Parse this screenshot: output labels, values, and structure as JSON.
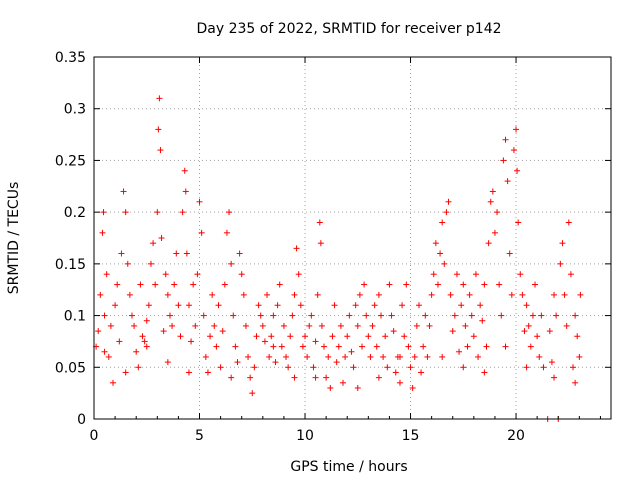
{
  "chart_data": {
    "type": "scatter",
    "title": "Day 235 of 2022, SRMTID for receiver p142",
    "xlabel": "GPS time / hours",
    "ylabel": "SRMTID / TECUs",
    "xlim": [
      0,
      24.5
    ],
    "ylim": [
      0,
      0.35
    ],
    "x_ticks": [
      0,
      5,
      10,
      15,
      20
    ],
    "x_tick_labels": [
      "0",
      "5",
      "10",
      "15",
      "20"
    ],
    "y_ticks": [
      0,
      0.05,
      0.1,
      0.15,
      0.2,
      0.25,
      0.3,
      0.35
    ],
    "y_tick_labels": [
      "0",
      "0.05",
      "0.1",
      "0.15",
      "0.2",
      "0.25",
      "0.3",
      "0.35"
    ],
    "grid": true,
    "marker": "+",
    "series": [
      {
        "name": "p142",
        "color": "#ff0000",
        "points": [
          [
            0.1,
            0.07
          ],
          [
            0.2,
            0.085
          ],
          [
            0.3,
            0.12
          ],
          [
            0.4,
            0.18
          ],
          [
            0.45,
            0.2
          ],
          [
            0.5,
            0.1
          ],
          [
            0.6,
            0.14
          ],
          [
            0.7,
            0.06
          ],
          [
            0.8,
            0.09
          ],
          [
            0.9,
            0.035
          ],
          [
            1.0,
            0.11
          ],
          [
            1.1,
            0.13
          ],
          [
            1.2,
            0.075
          ],
          [
            1.3,
            0.16
          ],
          [
            1.4,
            0.22
          ],
          [
            1.5,
            0.2
          ],
          [
            1.6,
            0.15
          ],
          [
            1.7,
            0.12
          ],
          [
            1.8,
            0.1
          ],
          [
            1.9,
            0.09
          ],
          [
            2.0,
            0.065
          ],
          [
            2.1,
            0.05
          ],
          [
            2.2,
            0.13
          ],
          [
            2.3,
            0.08
          ],
          [
            2.4,
            0.075
          ],
          [
            2.5,
            0.07
          ],
          [
            2.6,
            0.11
          ],
          [
            2.7,
            0.15
          ],
          [
            2.8,
            0.17
          ],
          [
            2.9,
            0.13
          ],
          [
            3.0,
            0.2
          ],
          [
            3.05,
            0.28
          ],
          [
            3.1,
            0.31
          ],
          [
            3.15,
            0.26
          ],
          [
            3.2,
            0.175
          ],
          [
            3.3,
            0.085
          ],
          [
            3.4,
            0.14
          ],
          [
            3.5,
            0.12
          ],
          [
            3.6,
            0.1
          ],
          [
            3.7,
            0.09
          ],
          [
            3.8,
            0.13
          ],
          [
            3.9,
            0.16
          ],
          [
            4.0,
            0.11
          ],
          [
            4.1,
            0.08
          ],
          [
            4.2,
            0.2
          ],
          [
            4.3,
            0.24
          ],
          [
            4.35,
            0.22
          ],
          [
            4.4,
            0.16
          ],
          [
            4.5,
            0.11
          ],
          [
            4.6,
            0.075
          ],
          [
            4.7,
            0.13
          ],
          [
            4.8,
            0.09
          ],
          [
            4.9,
            0.14
          ],
          [
            5.0,
            0.21
          ],
          [
            5.1,
            0.18
          ],
          [
            5.2,
            0.1
          ],
          [
            5.3,
            0.06
          ],
          [
            5.4,
            0.045
          ],
          [
            5.5,
            0.08
          ],
          [
            5.6,
            0.12
          ],
          [
            5.7,
            0.09
          ],
          [
            5.8,
            0.07
          ],
          [
            5.9,
            0.11
          ],
          [
            6.0,
            0.05
          ],
          [
            6.1,
            0.085
          ],
          [
            6.2,
            0.13
          ],
          [
            6.3,
            0.18
          ],
          [
            6.4,
            0.2
          ],
          [
            6.5,
            0.15
          ],
          [
            6.6,
            0.1
          ],
          [
            6.7,
            0.07
          ],
          [
            6.8,
            0.055
          ],
          [
            6.9,
            0.16
          ],
          [
            7.0,
            0.14
          ],
          [
            7.1,
            0.12
          ],
          [
            7.2,
            0.09
          ],
          [
            7.3,
            0.06
          ],
          [
            7.4,
            0.04
          ],
          [
            7.5,
            0.025
          ],
          [
            7.6,
            0.05
          ],
          [
            7.7,
            0.08
          ],
          [
            7.8,
            0.11
          ],
          [
            7.9,
            0.1
          ],
          [
            8.0,
            0.09
          ],
          [
            8.1,
            0.075
          ],
          [
            8.2,
            0.12
          ],
          [
            8.3,
            0.06
          ],
          [
            8.4,
            0.08
          ],
          [
            8.5,
            0.1
          ],
          [
            8.6,
            0.055
          ],
          [
            8.7,
            0.11
          ],
          [
            8.8,
            0.13
          ],
          [
            8.9,
            0.07
          ],
          [
            9.0,
            0.09
          ],
          [
            9.1,
            0.06
          ],
          [
            9.2,
            0.05
          ],
          [
            9.3,
            0.08
          ],
          [
            9.4,
            0.1
          ],
          [
            9.5,
            0.12
          ],
          [
            9.6,
            0.165
          ],
          [
            9.7,
            0.14
          ],
          [
            9.8,
            0.11
          ],
          [
            9.9,
            0.07
          ],
          [
            10.0,
            0.08
          ],
          [
            10.1,
            0.06
          ],
          [
            10.2,
            0.09
          ],
          [
            10.3,
            0.1
          ],
          [
            10.4,
            0.05
          ],
          [
            10.5,
            0.075
          ],
          [
            10.6,
            0.12
          ],
          [
            10.7,
            0.19
          ],
          [
            10.75,
            0.17
          ],
          [
            10.8,
            0.09
          ],
          [
            10.9,
            0.07
          ],
          [
            11.0,
            0.04
          ],
          [
            11.1,
            0.06
          ],
          [
            11.2,
            0.03
          ],
          [
            11.3,
            0.08
          ],
          [
            11.4,
            0.11
          ],
          [
            11.5,
            0.055
          ],
          [
            11.6,
            0.07
          ],
          [
            11.7,
            0.09
          ],
          [
            11.8,
            0.035
          ],
          [
            11.9,
            0.06
          ],
          [
            12.0,
            0.08
          ],
          [
            12.1,
            0.1
          ],
          [
            12.2,
            0.065
          ],
          [
            12.3,
            0.05
          ],
          [
            12.4,
            0.11
          ],
          [
            12.5,
            0.09
          ],
          [
            12.6,
            0.12
          ],
          [
            12.7,
            0.07
          ],
          [
            12.8,
            0.13
          ],
          [
            12.9,
            0.1
          ],
          [
            13.0,
            0.08
          ],
          [
            13.1,
            0.06
          ],
          [
            13.2,
            0.09
          ],
          [
            13.3,
            0.11
          ],
          [
            13.4,
            0.07
          ],
          [
            13.5,
            0.12
          ],
          [
            13.6,
            0.1
          ],
          [
            13.7,
            0.06
          ],
          [
            13.8,
            0.08
          ],
          [
            13.9,
            0.05
          ],
          [
            14.0,
            0.13
          ],
          [
            14.1,
            0.1
          ],
          [
            14.2,
            0.085
          ],
          [
            14.3,
            0.045
          ],
          [
            14.4,
            0.06
          ],
          [
            14.5,
            0.035
          ],
          [
            14.6,
            0.11
          ],
          [
            14.7,
            0.08
          ],
          [
            14.8,
            0.13
          ],
          [
            14.9,
            0.07
          ],
          [
            15.0,
            0.05
          ],
          [
            15.1,
            0.03
          ],
          [
            15.2,
            0.06
          ],
          [
            15.3,
            0.09
          ],
          [
            15.4,
            0.11
          ],
          [
            15.5,
            0.045
          ],
          [
            15.6,
            0.07
          ],
          [
            15.7,
            0.1
          ],
          [
            15.8,
            0.06
          ],
          [
            15.9,
            0.09
          ],
          [
            16.0,
            0.12
          ],
          [
            16.1,
            0.14
          ],
          [
            16.2,
            0.17
          ],
          [
            16.3,
            0.13
          ],
          [
            16.4,
            0.16
          ],
          [
            16.5,
            0.19
          ],
          [
            16.6,
            0.15
          ],
          [
            16.7,
            0.2
          ],
          [
            16.8,
            0.21
          ],
          [
            16.9,
            0.12
          ],
          [
            17.0,
            0.085
          ],
          [
            17.1,
            0.1
          ],
          [
            17.2,
            0.14
          ],
          [
            17.3,
            0.065
          ],
          [
            17.4,
            0.11
          ],
          [
            17.5,
            0.13
          ],
          [
            17.6,
            0.09
          ],
          [
            17.7,
            0.07
          ],
          [
            17.8,
            0.12
          ],
          [
            17.9,
            0.1
          ],
          [
            18.0,
            0.08
          ],
          [
            18.1,
            0.14
          ],
          [
            18.2,
            0.06
          ],
          [
            18.3,
            0.11
          ],
          [
            18.4,
            0.095
          ],
          [
            18.5,
            0.13
          ],
          [
            18.6,
            0.07
          ],
          [
            18.7,
            0.17
          ],
          [
            18.8,
            0.21
          ],
          [
            18.9,
            0.22
          ],
          [
            19.0,
            0.18
          ],
          [
            19.1,
            0.2
          ],
          [
            19.2,
            0.13
          ],
          [
            19.3,
            0.1
          ],
          [
            19.4,
            0.25
          ],
          [
            19.5,
            0.27
          ],
          [
            19.6,
            0.23
          ],
          [
            19.7,
            0.16
          ],
          [
            19.8,
            0.12
          ],
          [
            19.9,
            0.26
          ],
          [
            20.0,
            0.28
          ],
          [
            20.05,
            0.24
          ],
          [
            20.1,
            0.19
          ],
          [
            20.2,
            0.14
          ],
          [
            20.3,
            0.12
          ],
          [
            20.4,
            0.085
          ],
          [
            20.5,
            0.11
          ],
          [
            20.6,
            0.09
          ],
          [
            20.7,
            0.07
          ],
          [
            20.8,
            0.1
          ],
          [
            20.9,
            0.13
          ],
          [
            21.0,
            0.08
          ],
          [
            21.1,
            0.06
          ],
          [
            21.2,
            0.1
          ],
          [
            21.3,
            0.05
          ],
          [
            21.5,
            0.0
          ],
          [
            21.6,
            0.085
          ],
          [
            21.7,
            0.055
          ],
          [
            21.8,
            0.12
          ],
          [
            21.9,
            0.1
          ],
          [
            22.0,
            0.0
          ],
          [
            22.1,
            0.15
          ],
          [
            22.2,
            0.17
          ],
          [
            22.3,
            0.12
          ],
          [
            22.4,
            0.09
          ],
          [
            22.5,
            0.19
          ],
          [
            22.6,
            0.14
          ],
          [
            22.7,
            0.05
          ],
          [
            22.8,
            0.1
          ],
          [
            22.9,
            0.08
          ],
          [
            23.0,
            0.06
          ],
          [
            23.05,
            0.12
          ],
          [
            0.5,
            0.065
          ],
          [
            1.5,
            0.045
          ],
          [
            2.5,
            0.095
          ],
          [
            3.5,
            0.055
          ],
          [
            4.5,
            0.045
          ],
          [
            6.5,
            0.04
          ],
          [
            8.5,
            0.07
          ],
          [
            9.5,
            0.04
          ],
          [
            10.5,
            0.04
          ],
          [
            12.5,
            0.03
          ],
          [
            13.5,
            0.04
          ],
          [
            14.5,
            0.06
          ],
          [
            16.5,
            0.06
          ],
          [
            17.5,
            0.05
          ],
          [
            18.5,
            0.045
          ],
          [
            19.5,
            0.07
          ],
          [
            20.5,
            0.05
          ],
          [
            21.8,
            0.04
          ],
          [
            22.8,
            0.035
          ]
        ]
      }
    ]
  }
}
